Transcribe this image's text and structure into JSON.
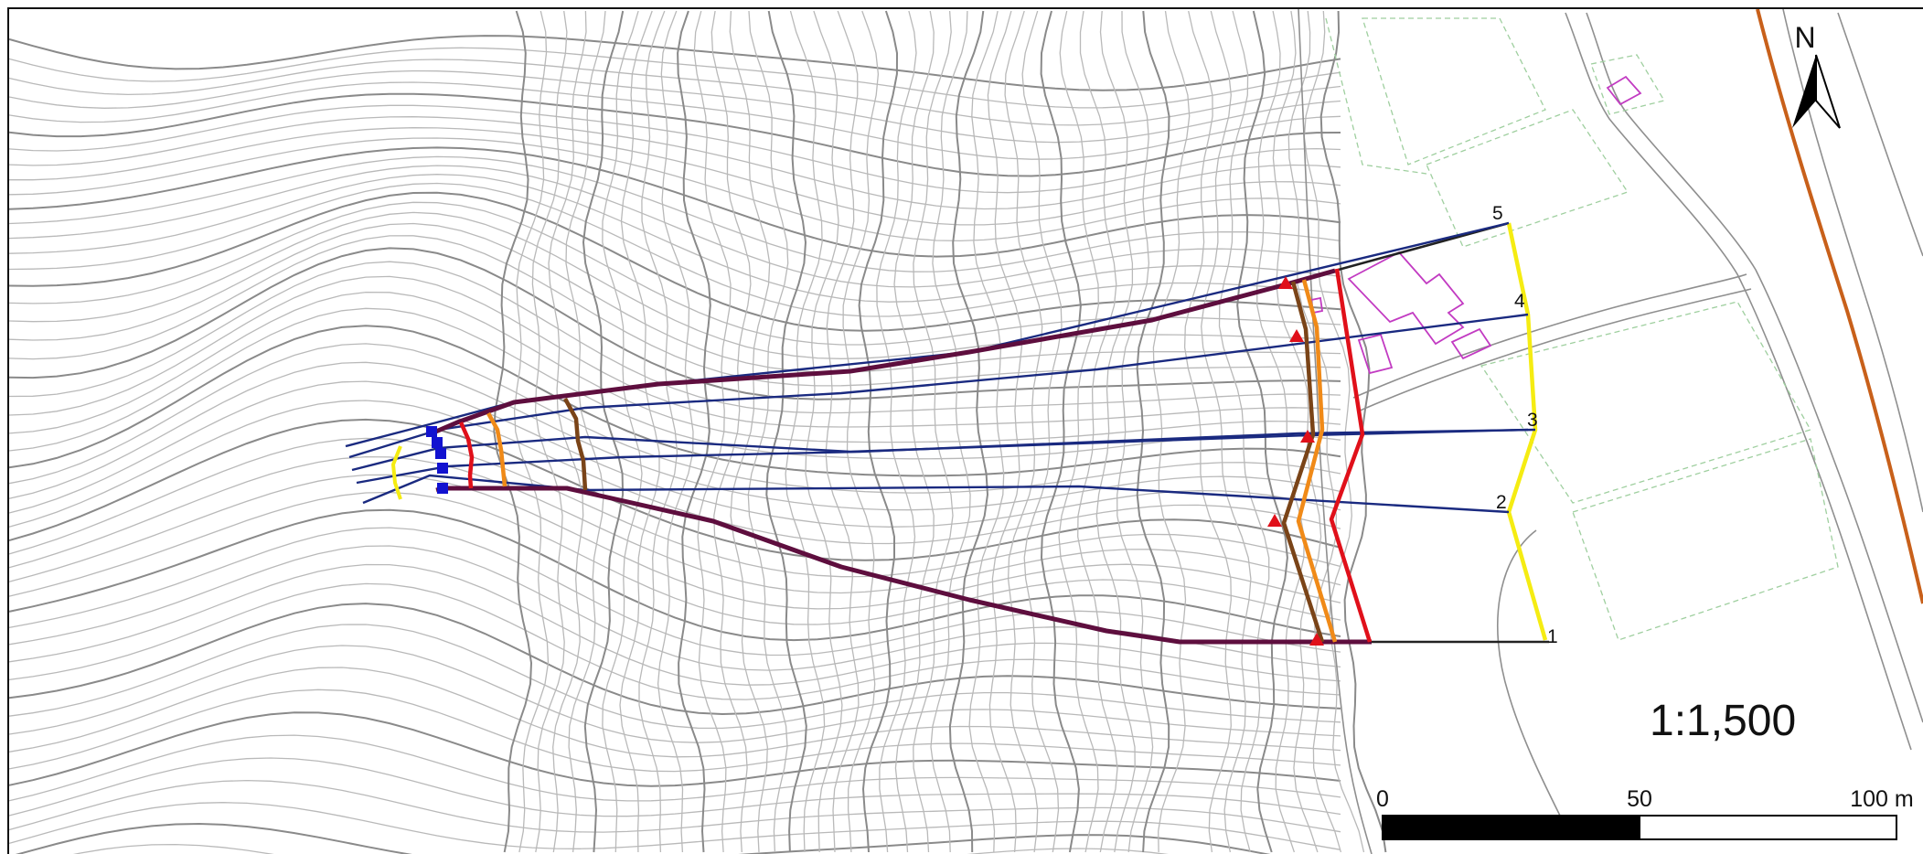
{
  "map": {
    "scale_text": "1:1,500",
    "north_label": "N",
    "scalebar": {
      "labels": [
        "0",
        "50",
        "100 m"
      ],
      "ticks_m": [
        0,
        50,
        100
      ],
      "segments": [
        {
          "from_m": 0,
          "to_m": 50,
          "fill": "#000000"
        },
        {
          "from_m": 50,
          "to_m": 100,
          "fill": "#ffffff"
        }
      ]
    },
    "section_labels": [
      "1",
      "2",
      "3",
      "4",
      "5"
    ],
    "colors": {
      "section_lines": "#1a2a80",
      "flow_boundary": "#5e0e3e",
      "front_red": "#e0101a",
      "front_orange": "#f08a18",
      "front_brown": "#7a4418",
      "front_yellow": "#f5ec12",
      "markers_start": "#1212d0",
      "markers_end": "#e0101a",
      "river": "#c8601a",
      "buildings": "#c23bc2",
      "contours": "#b9b9b9"
    },
    "icons": {
      "start_marker": "blue-square-icon",
      "end_marker": "red-triangle-icon",
      "north_arrow": "north-arrow-icon"
    }
  }
}
